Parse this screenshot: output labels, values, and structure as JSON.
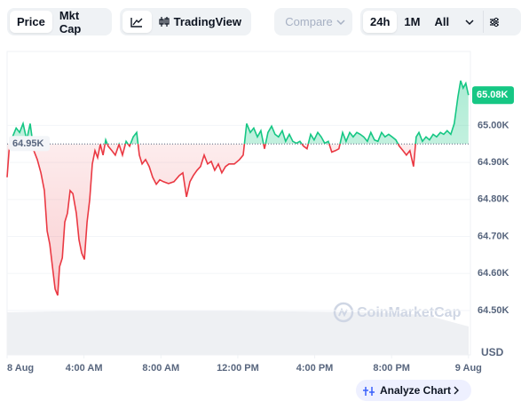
{
  "toolbar": {
    "price": "Price",
    "mkt_cap": "Mkt Cap",
    "tradingview": "TradingView",
    "compare": "Compare",
    "ranges": [
      "24h",
      "1M",
      "All"
    ]
  },
  "watermark": "CoinMarketCap",
  "analyze": "Analyze Chart",
  "chart_data": {
    "type": "line",
    "y_label": "USD",
    "up_color": "#16c784",
    "down_color": "#ea3943",
    "grid": true,
    "baseline": {
      "value": 64950,
      "label": "64.95K"
    },
    "last_label": "65.08K",
    "xlim": [
      0,
      24.1
    ],
    "ylim": [
      64380,
      65200
    ],
    "xticks": [
      {
        "value": 0,
        "label": "8 Aug"
      },
      {
        "value": 4,
        "label": "4:00 AM"
      },
      {
        "value": 8,
        "label": "8:00 AM"
      },
      {
        "value": 12,
        "label": "12:00 PM"
      },
      {
        "value": 16,
        "label": "4:00 PM"
      },
      {
        "value": 20,
        "label": "8:00 PM"
      },
      {
        "value": 24,
        "label": "9 Aug"
      }
    ],
    "yticks": [
      {
        "value": 64500,
        "label": "64.50K"
      },
      {
        "value": 64600,
        "label": "64.60K"
      },
      {
        "value": 64700,
        "label": "64.70K"
      },
      {
        "value": 64800,
        "label": "64.80K"
      },
      {
        "value": 64900,
        "label": "64.90K"
      },
      {
        "value": 65000,
        "label": "65.00K"
      }
    ],
    "x": [
      0,
      0.1,
      0.28,
      0.47,
      0.65,
      0.83,
      1.02,
      1.2,
      1.39,
      1.57,
      1.76,
      1.94,
      2.08,
      2.22,
      2.36,
      2.5,
      2.63,
      2.73,
      2.87,
      3,
      3.14,
      3.28,
      3.42,
      3.6,
      3.74,
      3.88,
      4.02,
      4.16,
      4.3,
      4.43,
      4.57,
      4.71,
      4.85,
      4.99,
      5.13,
      5.26,
      5.45,
      5.63,
      5.82,
      6,
      6.19,
      6.37,
      6.56,
      6.74,
      6.88,
      7.02,
      7.2,
      7.39,
      7.57,
      7.76,
      7.94,
      8.13,
      8.4,
      8.68,
      8.96,
      9.14,
      9.33,
      9.51,
      9.69,
      9.88,
      10.06,
      10.25,
      10.43,
      10.62,
      10.8,
      10.99,
      11.17,
      11.36,
      11.54,
      11.82,
      12.09,
      12.28,
      12.46,
      12.65,
      12.83,
      13.02,
      13.2,
      13.39,
      13.57,
      13.76,
      13.94,
      14.12,
      14.31,
      14.49,
      14.68,
      14.86,
      15.05,
      15.23,
      15.42,
      15.6,
      15.79,
      15.97,
      16.16,
      16.34,
      16.52,
      16.71,
      16.89,
      17.08,
      17.26,
      17.45,
      17.63,
      17.82,
      18,
      18.19,
      18.37,
      18.55,
      18.74,
      18.92,
      19.11,
      19.29,
      19.48,
      19.66,
      19.85,
      20.03,
      20.22,
      20.4,
      20.59,
      20.77,
      20.95,
      21.14,
      21.28,
      21.42,
      21.6,
      21.79,
      21.97,
      22.16,
      22.34,
      22.54,
      22.71,
      22.89,
      23.08,
      23.26,
      23.45,
      23.59,
      23.72,
      23.86,
      24
    ],
    "values": [
      64860,
      64932,
      64969,
      64993,
      64981,
      65005,
      64961,
      65005,
      64932,
      64908,
      64872,
      64824,
      64715,
      64679,
      64618,
      64558,
      64541,
      64618,
      64642,
      64739,
      64763,
      64824,
      64816,
      64763,
      64691,
      64655,
      64638,
      64739,
      64800,
      64896,
      64932,
      64913,
      64949,
      64920,
      64961,
      64944,
      64932,
      64920,
      64949,
      64920,
      64957,
      64944,
      64969,
      64981,
      64920,
      64896,
      64908,
      64889,
      64860,
      64841,
      64853,
      64848,
      64843,
      64848,
      64865,
      64872,
      64807,
      64848,
      64865,
      64879,
      64889,
      64920,
      64896,
      64903,
      64879,
      64896,
      64872,
      64889,
      64896,
      64896,
      64908,
      64920,
      65005,
      64981,
      64993,
      64969,
      64986,
      64937,
      64981,
      64998,
      64976,
      64969,
      64986,
      64957,
      64976,
      64957,
      64952,
      64957,
      64944,
      64937,
      64976,
      64961,
      64981,
      64969,
      64952,
      64957,
      64928,
      64932,
      64937,
      64981,
      64957,
      64981,
      64969,
      64981,
      64976,
      64969,
      64957,
      64981,
      64961,
      64957,
      64981,
      64969,
      64976,
      64969,
      64961,
      64944,
      64932,
      64920,
      64932,
      64889,
      64969,
      64981,
      64957,
      64969,
      64961,
      64976,
      64969,
      64981,
      64976,
      64986,
      64976,
      65005,
      65077,
      65121,
      65101,
      65114,
      65082
    ]
  }
}
